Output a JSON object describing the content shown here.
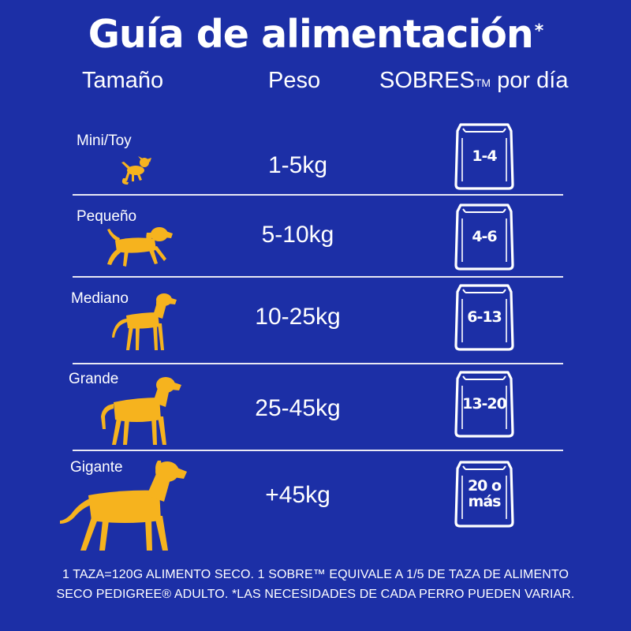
{
  "title": {
    "text": "Guía de alimentación",
    "mark": "*"
  },
  "headers": {
    "size": "Tamaño",
    "weight": "Peso",
    "sachets": "SOBRES",
    "tm": "TM",
    "per_day": "por día"
  },
  "rows": [
    {
      "size": "Mini/Toy",
      "weight": "1-5kg",
      "sachets": "1-4"
    },
    {
      "size": "Pequeño",
      "weight": "5-10kg",
      "sachets": "4-6"
    },
    {
      "size": "Mediano",
      "weight": "10-25kg",
      "sachets": "6-13"
    },
    {
      "size": "Grande",
      "weight": "25-45kg",
      "sachets": "13-20"
    },
    {
      "size": "Gigante",
      "weight": "+45kg",
      "sachets_line1": "20 o",
      "sachets_line2": "más"
    }
  ],
  "footnote": {
    "line1": "1 TAZA=120G ALIMENTO SECO. 1 SOBRE™ EQUIVALE A 1/5 DE TAZA DE ALIMENTO",
    "line2": "SECO PEDIGREE® ADULTO. *LAS NECESIDADES DE CADA PERRO PUEDEN VARIAR."
  },
  "colors": {
    "background": "#1c2fa6",
    "dog": "#f6b31e",
    "text": "#ffffff"
  }
}
